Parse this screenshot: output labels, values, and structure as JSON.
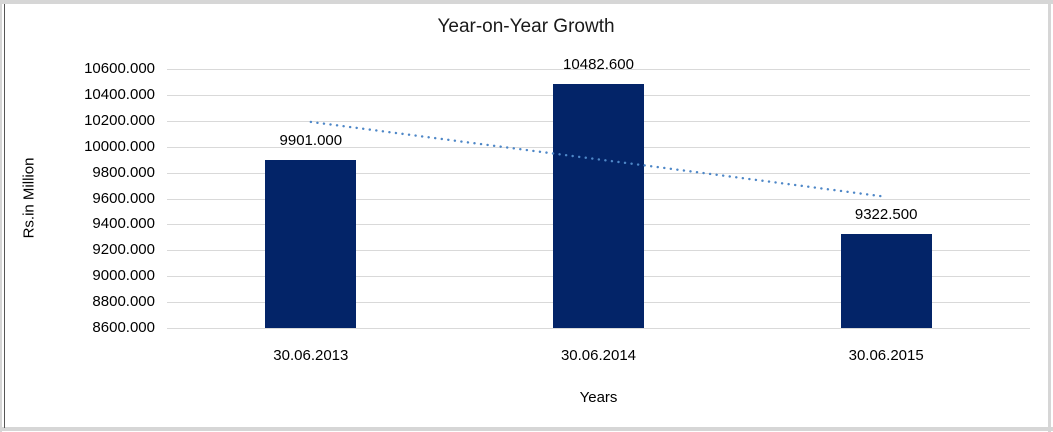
{
  "chart_data": {
    "type": "bar",
    "title": "Year-on-Year Growth",
    "categories": [
      "30.06.2013",
      "30.06.2014",
      "30.06.2015"
    ],
    "values": [
      9901.0,
      10482.6,
      9322.5
    ],
    "data_labels": [
      "9901.000",
      "10482.600",
      "9322.500"
    ],
    "xlabel": "Years",
    "ylabel": "Rs.in Million",
    "ylim": [
      8600,
      10600
    ],
    "ytick_step": 200,
    "ytick_decimals": 3,
    "grid": true,
    "legend": "none",
    "bar_color": "#032468",
    "gridline_color": "#d9d9d9",
    "text_color": "#000000",
    "trendline": {
      "type": "linear",
      "style": "dotted",
      "color": "#4e87c7"
    }
  }
}
